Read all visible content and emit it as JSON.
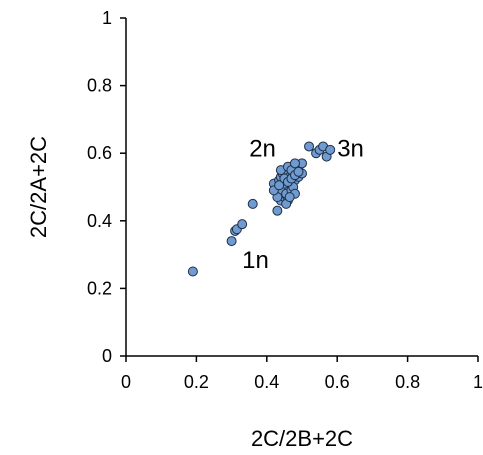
{
  "chart_data": {
    "type": "scatter",
    "title": "",
    "xlabel": "2C/2B+2C",
    "ylabel": "2C/2A+2C",
    "xlim": [
      0,
      1
    ],
    "ylim": [
      0,
      1
    ],
    "xticks": [
      0,
      0.2,
      0.4,
      0.6,
      0.8,
      1
    ],
    "yticks": [
      0,
      0.2,
      0.4,
      0.6,
      0.8,
      1
    ],
    "xtick_labels": [
      "0",
      "0.2",
      "0.4",
      "0.6",
      "0.8",
      "1"
    ],
    "ytick_labels": [
      "0",
      "0.2",
      "0.4",
      "0.6",
      "0.8",
      "1"
    ],
    "grid": false,
    "marker_color": "#6f9bd1",
    "annotations": [
      {
        "text": "1n",
        "x": 0.33,
        "y": 0.26
      },
      {
        "text": "2n",
        "x": 0.35,
        "y": 0.59
      },
      {
        "text": "3n",
        "x": 0.6,
        "y": 0.59
      }
    ],
    "series": [
      {
        "points": [
          [
            0.19,
            0.25
          ],
          [
            0.3,
            0.34
          ],
          [
            0.31,
            0.37
          ],
          [
            0.315,
            0.375
          ],
          [
            0.33,
            0.39
          ],
          [
            0.36,
            0.45
          ],
          [
            0.43,
            0.43
          ],
          [
            0.44,
            0.46
          ],
          [
            0.45,
            0.47
          ],
          [
            0.44,
            0.48
          ],
          [
            0.43,
            0.5
          ],
          [
            0.42,
            0.51
          ],
          [
            0.435,
            0.52
          ],
          [
            0.44,
            0.53
          ],
          [
            0.445,
            0.54
          ],
          [
            0.45,
            0.55
          ],
          [
            0.455,
            0.52
          ],
          [
            0.46,
            0.5
          ],
          [
            0.465,
            0.53
          ],
          [
            0.47,
            0.51
          ],
          [
            0.475,
            0.54
          ],
          [
            0.48,
            0.52
          ],
          [
            0.485,
            0.55
          ],
          [
            0.49,
            0.56
          ],
          [
            0.5,
            0.57
          ],
          [
            0.44,
            0.49
          ],
          [
            0.45,
            0.51
          ],
          [
            0.455,
            0.48
          ],
          [
            0.46,
            0.46
          ],
          [
            0.47,
            0.49
          ],
          [
            0.475,
            0.5
          ],
          [
            0.48,
            0.48
          ],
          [
            0.49,
            0.53
          ],
          [
            0.5,
            0.54
          ],
          [
            0.44,
            0.55
          ],
          [
            0.46,
            0.56
          ],
          [
            0.47,
            0.55
          ],
          [
            0.48,
            0.57
          ],
          [
            0.455,
            0.45
          ],
          [
            0.465,
            0.47
          ],
          [
            0.43,
            0.47
          ],
          [
            0.42,
            0.49
          ],
          [
            0.435,
            0.505
          ],
          [
            0.45,
            0.525
          ],
          [
            0.46,
            0.515
          ],
          [
            0.47,
            0.525
          ],
          [
            0.48,
            0.535
          ],
          [
            0.49,
            0.545
          ],
          [
            0.52,
            0.62
          ],
          [
            0.54,
            0.6
          ],
          [
            0.55,
            0.61
          ],
          [
            0.56,
            0.62
          ],
          [
            0.57,
            0.59
          ],
          [
            0.58,
            0.61
          ]
        ]
      }
    ]
  }
}
